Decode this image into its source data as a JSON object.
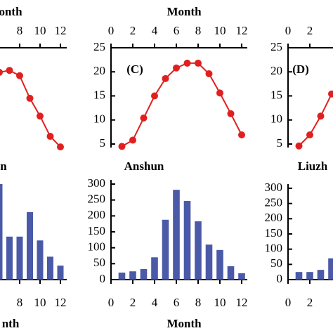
{
  "chart_data": [
    {
      "type": "line",
      "xlabel": "onth",
      "x": [
        6,
        7,
        8,
        9,
        10,
        11,
        12
      ],
      "values": [
        19.9,
        20.3,
        19.2,
        14.5,
        10.8,
        6.6,
        4.4
      ],
      "color": "#e02020",
      "xlim": [
        0,
        12
      ],
      "xticks": [
        8,
        10,
        12
      ],
      "ylim": [
        5,
        25
      ]
    },
    {
      "type": "line",
      "xlabel": "Month",
      "label": "(C)",
      "x": [
        1,
        2,
        3,
        4,
        5,
        6,
        7,
        8,
        9,
        10,
        11,
        12
      ],
      "values": [
        4.5,
        5.8,
        10.4,
        15,
        18.6,
        20.8,
        21.8,
        21.8,
        19.6,
        15.6,
        11.3,
        6.9
      ],
      "color": "#e02020",
      "xlim": [
        0,
        12
      ],
      "xticks": [
        0,
        2,
        4,
        6,
        8,
        10,
        12
      ],
      "ylim": [
        5,
        25
      ],
      "yticks": [
        5,
        10,
        15,
        20,
        25
      ]
    },
    {
      "type": "line",
      "label": "(D)",
      "x": [
        1,
        2,
        3,
        4
      ],
      "values": [
        4.6,
        6.9,
        10.8,
        15.4
      ],
      "color": "#e02020",
      "xlim": [
        0,
        12
      ],
      "xticks": [
        0,
        2
      ],
      "ylim": [
        5,
        25
      ],
      "yticks": [
        5,
        10,
        15,
        20,
        25
      ]
    },
    {
      "type": "bar",
      "title": "n",
      "xlabel": "nth",
      "x": [
        6,
        7,
        8,
        9,
        10,
        11,
        12
      ],
      "values": [
        300,
        135,
        135,
        212,
        123,
        72,
        44
      ],
      "color": "#4a5aa8",
      "xlim": [
        0,
        12
      ],
      "xticks": [
        8,
        10,
        12
      ],
      "ylim": [
        0,
        300
      ]
    },
    {
      "type": "bar",
      "title": "Anshun",
      "xlabel": "Month",
      "x": [
        1,
        2,
        3,
        4,
        5,
        6,
        7,
        8,
        9,
        10,
        11,
        12
      ],
      "values": [
        22,
        26,
        33,
        70,
        188,
        282,
        247,
        183,
        110,
        93,
        42,
        20
      ],
      "color": "#4a5aa8",
      "xlim": [
        0,
        12
      ],
      "xticks": [
        0,
        2,
        4,
        6,
        8,
        10,
        12
      ],
      "ylim": [
        0,
        300
      ],
      "yticks": [
        0,
        50,
        100,
        150,
        200,
        250,
        300
      ]
    },
    {
      "type": "bar",
      "title": "Liuzh",
      "x": [
        1,
        2,
        3,
        4
      ],
      "values": [
        25,
        25,
        32,
        70
      ],
      "color": "#4a5aa8",
      "xlim": [
        0,
        12
      ],
      "xticks": [
        0,
        2
      ],
      "ylim": [
        0,
        300
      ],
      "yticks": [
        0,
        50,
        100,
        150,
        200,
        250,
        300
      ]
    }
  ]
}
